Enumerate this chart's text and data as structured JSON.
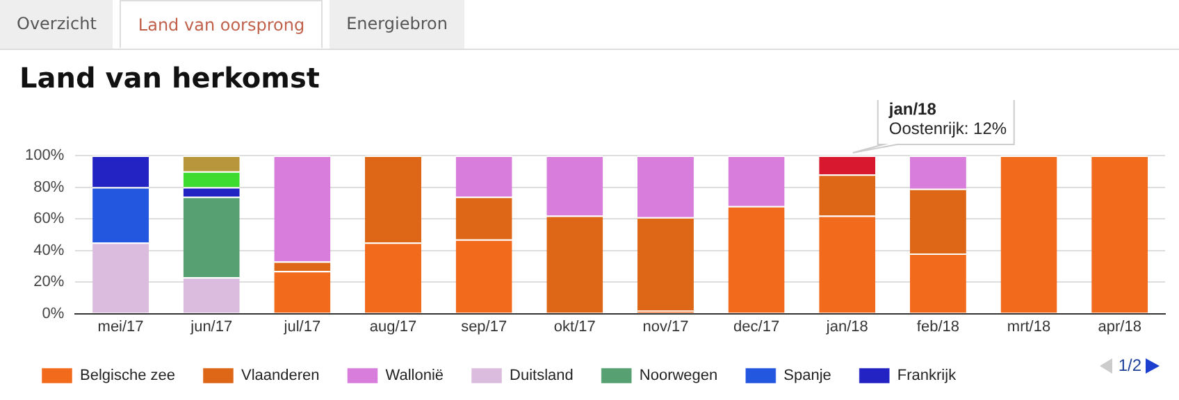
{
  "chart_data": {
    "type": "bar",
    "title": "Land van herkomst",
    "stacked": true,
    "legend": "bottom",
    "grid": "y",
    "categories": [
      "mei/17",
      "jun/17",
      "jul/17",
      "aug/17",
      "sep/17",
      "okt/17",
      "nov/17",
      "dec/17",
      "jan/18",
      "feb/18",
      "mrt/18",
      "apr/18"
    ],
    "ylim": [
      0,
      100
    ],
    "yticks": [
      {
        "value": 0,
        "label": "0%"
      },
      {
        "value": 20,
        "label": "20%"
      },
      {
        "value": 40,
        "label": "40%"
      },
      {
        "value": 60,
        "label": "60%"
      },
      {
        "value": 80,
        "label": "80%"
      },
      {
        "value": 100,
        "label": "100%"
      }
    ],
    "series": [
      {
        "name": "Belgische zee",
        "color": "#f26b1d",
        "values": [
          null,
          null,
          27,
          45,
          47,
          null,
          2,
          68,
          62,
          38,
          100,
          100
        ]
      },
      {
        "name": "Vlaanderen",
        "color": "#dd6617",
        "values": [
          null,
          null,
          6,
          55,
          27,
          62,
          59,
          null,
          26,
          41,
          null,
          null
        ]
      },
      {
        "name": "Wallonië",
        "color": "#d97ddd",
        "values": [
          null,
          null,
          67,
          null,
          26,
          38,
          39,
          32,
          null,
          21,
          null,
          null
        ]
      },
      {
        "name": "Duitsland",
        "color": "#dbbcdf",
        "values": [
          45,
          23,
          null,
          null,
          null,
          null,
          null,
          null,
          null,
          null,
          null,
          null
        ]
      },
      {
        "name": "Noorwegen",
        "color": "#56a071",
        "values": [
          null,
          51,
          null,
          null,
          null,
          null,
          null,
          null,
          null,
          null,
          null,
          null
        ]
      },
      {
        "name": "Spanje",
        "color": "#2457e0",
        "values": [
          35,
          null,
          null,
          null,
          null,
          null,
          null,
          null,
          null,
          null,
          null,
          null
        ]
      },
      {
        "name": "Frankrijk",
        "color": "#2323c4",
        "values": [
          20,
          6,
          null,
          null,
          null,
          null,
          null,
          null,
          null,
          null,
          null,
          null
        ]
      },
      {
        "color": "#3edc31",
        "values": [
          null,
          10,
          null,
          null,
          null,
          null,
          null,
          null,
          null,
          null,
          null,
          null
        ]
      },
      {
        "color": "#b8963c",
        "values": [
          null,
          10,
          null,
          null,
          null,
          null,
          null,
          null,
          null,
          null,
          null,
          null
        ]
      },
      {
        "color": "#d8182f",
        "values": [
          null,
          null,
          null,
          null,
          null,
          null,
          null,
          null,
          12,
          null,
          null,
          null
        ]
      }
    ],
    "annotations": [
      "Overzicht",
      "Land van oorsprong",
      "Energiebron",
      "jan/18",
      "Oostenrijk: 12%",
      "1/2"
    ]
  }
}
